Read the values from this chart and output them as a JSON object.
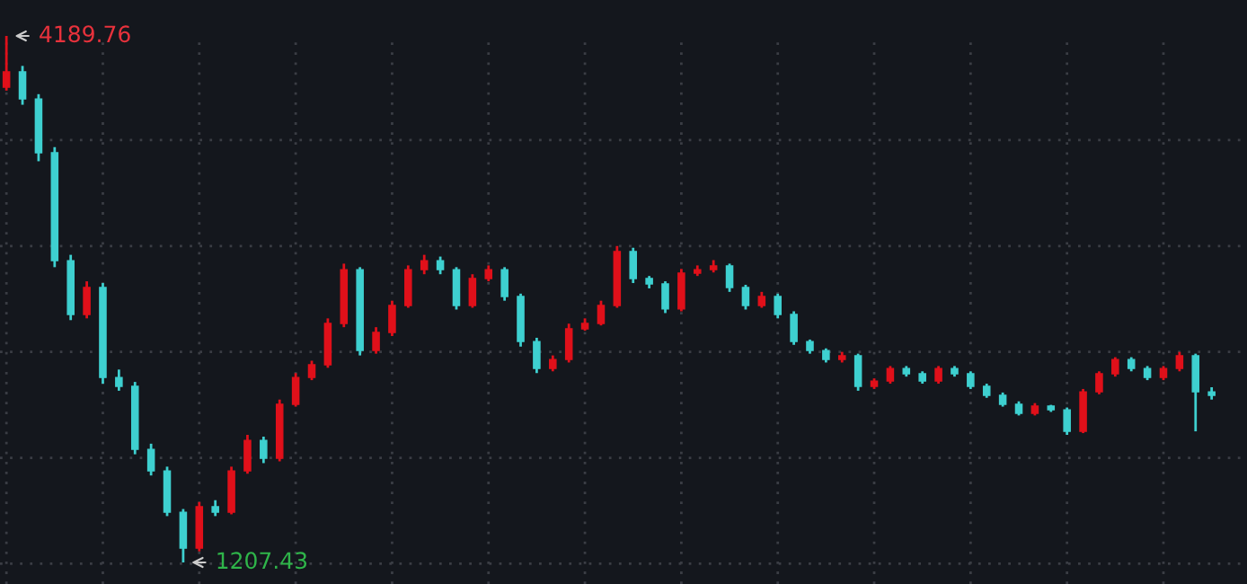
{
  "chart_data": {
    "type": "candlestick",
    "categories": [
      null,
      null,
      null,
      null,
      null,
      null,
      null,
      null,
      null,
      null,
      null,
      null,
      null,
      null,
      null,
      null,
      null,
      null,
      null,
      null,
      null,
      null,
      null,
      null,
      null,
      null,
      null,
      null,
      null,
      null,
      null,
      null,
      null,
      null,
      null,
      null,
      null,
      null,
      null,
      null,
      null,
      null,
      null,
      null,
      null,
      null,
      null,
      null,
      null,
      null,
      null,
      null,
      null,
      null,
      null,
      null,
      null,
      null,
      null,
      null,
      null,
      null,
      null,
      null,
      null,
      null,
      null,
      null,
      null,
      null,
      null,
      null,
      null,
      null,
      null,
      null
    ],
    "ohlc": [
      [
        3900,
        4189.76,
        3880,
        3986
      ],
      [
        3986,
        4020,
        3800,
        3833
      ],
      [
        3833,
        3860,
        3480,
        3528
      ],
      [
        3528,
        3560,
        2880,
        2917
      ],
      [
        2917,
        2950,
        2580,
        2612
      ],
      [
        2612,
        2800,
        2590,
        2765
      ],
      [
        2765,
        2790,
        2220,
        2255
      ],
      [
        2255,
        2300,
        2180,
        2205
      ],
      [
        2205,
        2230,
        1820,
        1848
      ],
      [
        1848,
        1880,
        1700,
        1726
      ],
      [
        1726,
        1750,
        1470,
        1492
      ],
      [
        1492,
        1510,
        1207.43,
        1288
      ],
      [
        1288,
        1550,
        1270,
        1523
      ],
      [
        1523,
        1560,
        1470,
        1492
      ],
      [
        1492,
        1750,
        1480,
        1726
      ],
      [
        1726,
        1930,
        1710,
        1899
      ],
      [
        1899,
        1920,
        1770,
        1798
      ],
      [
        1798,
        2130,
        1780,
        2103
      ],
      [
        2103,
        2280,
        2090,
        2255
      ],
      [
        2255,
        2350,
        2240,
        2327
      ],
      [
        2327,
        2590,
        2310,
        2561
      ],
      [
        2561,
        2900,
        2540,
        2866
      ],
      [
        2866,
        2880,
        2380,
        2408
      ],
      [
        2408,
        2540,
        2390,
        2510
      ],
      [
        2510,
        2690,
        2490,
        2663
      ],
      [
        2663,
        2890,
        2650,
        2866
      ],
      [
        2866,
        2950,
        2840,
        2917
      ],
      [
        2917,
        2940,
        2840,
        2866
      ],
      [
        2866,
        2880,
        2640,
        2663
      ],
      [
        2663,
        2840,
        2650,
        2816
      ],
      [
        2816,
        2890,
        2800,
        2866
      ],
      [
        2866,
        2880,
        2690,
        2714
      ],
      [
        2714,
        2730,
        2430,
        2459
      ],
      [
        2459,
        2480,
        2280,
        2306
      ],
      [
        2306,
        2380,
        2290,
        2357
      ],
      [
        2357,
        2560,
        2340,
        2531
      ],
      [
        2531,
        2590,
        2520,
        2561
      ],
      [
        2561,
        2690,
        2550,
        2663
      ],
      [
        2663,
        3000,
        2650,
        2968
      ],
      [
        2968,
        2990,
        2790,
        2816
      ],
      [
        2816,
        2830,
        2760,
        2785
      ],
      [
        2785,
        2800,
        2620,
        2643
      ],
      [
        2643,
        2870,
        2630,
        2846
      ],
      [
        2846,
        2890,
        2830,
        2866
      ],
      [
        2866,
        2920,
        2850,
        2887
      ],
      [
        2887,
        2900,
        2740,
        2765
      ],
      [
        2765,
        2780,
        2640,
        2663
      ],
      [
        2663,
        2740,
        2650,
        2714
      ],
      [
        2714,
        2730,
        2590,
        2612
      ],
      [
        2612,
        2630,
        2440,
        2459
      ],
      [
        2459,
        2470,
        2390,
        2408
      ],
      [
        2408,
        2420,
        2340,
        2357
      ],
      [
        2357,
        2400,
        2340,
        2378
      ],
      [
        2378,
        2390,
        2180,
        2205
      ],
      [
        2205,
        2250,
        2190,
        2235
      ],
      [
        2235,
        2320,
        2220,
        2306
      ],
      [
        2306,
        2320,
        2260,
        2276
      ],
      [
        2276,
        2290,
        2220,
        2235
      ],
      [
        2235,
        2320,
        2220,
        2306
      ],
      [
        2306,
        2320,
        2260,
        2276
      ],
      [
        2276,
        2290,
        2190,
        2205
      ],
      [
        2205,
        2220,
        2140,
        2154
      ],
      [
        2154,
        2170,
        2090,
        2103
      ],
      [
        2103,
        2120,
        2040,
        2052
      ],
      [
        2052,
        2110,
        2040,
        2093
      ],
      [
        2093,
        2100,
        2060,
        2072
      ],
      [
        2072,
        2085,
        1930,
        1950
      ],
      [
        1950,
        2190,
        1940,
        2174
      ],
      [
        2174,
        2290,
        2160,
        2276
      ],
      [
        2276,
        2370,
        2260,
        2357
      ],
      [
        2357,
        2370,
        2290,
        2306
      ],
      [
        2306,
        2320,
        2240,
        2255
      ],
      [
        2255,
        2320,
        2240,
        2306
      ],
      [
        2306,
        2400,
        2290,
        2378
      ],
      [
        2378,
        2390,
        1950,
        2174
      ],
      [
        2174,
        2200,
        2130,
        2154
      ]
    ],
    "colors": [
      "#e0101a",
      "#3ed0d0",
      "#3ed0d0",
      "#3ed0d0",
      "#3ed0d0",
      "#e0101a",
      "#3ed0d0",
      "#3ed0d0",
      "#3ed0d0",
      "#3ed0d0",
      "#3ed0d0",
      "#3ed0d0",
      "#e0101a",
      "#3ed0d0",
      "#e0101a",
      "#e0101a",
      "#3ed0d0",
      "#e0101a",
      "#e0101a",
      "#e0101a",
      "#e0101a",
      "#e0101a",
      "#3ed0d0",
      "#e0101a",
      "#e0101a",
      "#e0101a",
      "#e0101a",
      "#3ed0d0",
      "#3ed0d0",
      "#e0101a",
      "#e0101a",
      "#3ed0d0",
      "#3ed0d0",
      "#3ed0d0",
      "#e0101a",
      "#e0101a",
      "#e0101a",
      "#e0101a",
      "#e0101a",
      "#3ed0d0",
      "#3ed0d0",
      "#3ed0d0",
      "#e0101a",
      "#e0101a",
      "#e0101a",
      "#3ed0d0",
      "#3ed0d0",
      "#e0101a",
      "#3ed0d0",
      "#3ed0d0",
      "#3ed0d0",
      "#3ed0d0",
      "#e0101a",
      "#3ed0d0",
      "#e0101a",
      "#e0101a",
      "#3ed0d0",
      "#3ed0d0",
      "#e0101a",
      "#3ed0d0",
      "#3ed0d0",
      "#3ed0d0",
      "#3ed0d0",
      "#3ed0d0",
      "#e0101a",
      "#3ed0d0",
      "#3ed0d0",
      "#e0101a",
      "#e0101a",
      "#e0101a",
      "#3ed0d0",
      "#3ed0d0",
      "#e0101a",
      "#e0101a",
      "#3ed0d0",
      "#3ed0d0"
    ],
    "annotations": [
      "4189.76",
      "1207.43"
    ],
    "grid": true,
    "tick_labels": false
  }
}
